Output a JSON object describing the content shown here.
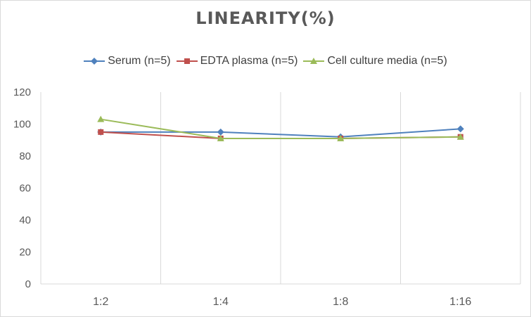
{
  "chart_data": {
    "type": "line",
    "title": "LINEARITY(%)",
    "xlabel": "",
    "ylabel": "",
    "categories": [
      "1:2",
      "1:4",
      "1:8",
      "1:16"
    ],
    "ylim": [
      0,
      120
    ],
    "yticks": [
      0,
      20,
      40,
      60,
      80,
      100,
      120
    ],
    "grid": "vertical",
    "legend_position": "top",
    "series": [
      {
        "name": "Serum (n=5)",
        "values": [
          95,
          95,
          92,
          97
        ],
        "color": "#4f81bd",
        "marker": "diamond"
      },
      {
        "name": "EDTA plasma (n=5)",
        "values": [
          95,
          91,
          91,
          92
        ],
        "color": "#c0504d",
        "marker": "square"
      },
      {
        "name": "Cell culture media (n=5)",
        "values": [
          103,
          91,
          91,
          92
        ],
        "color": "#9bbb59",
        "marker": "triangle"
      }
    ]
  }
}
